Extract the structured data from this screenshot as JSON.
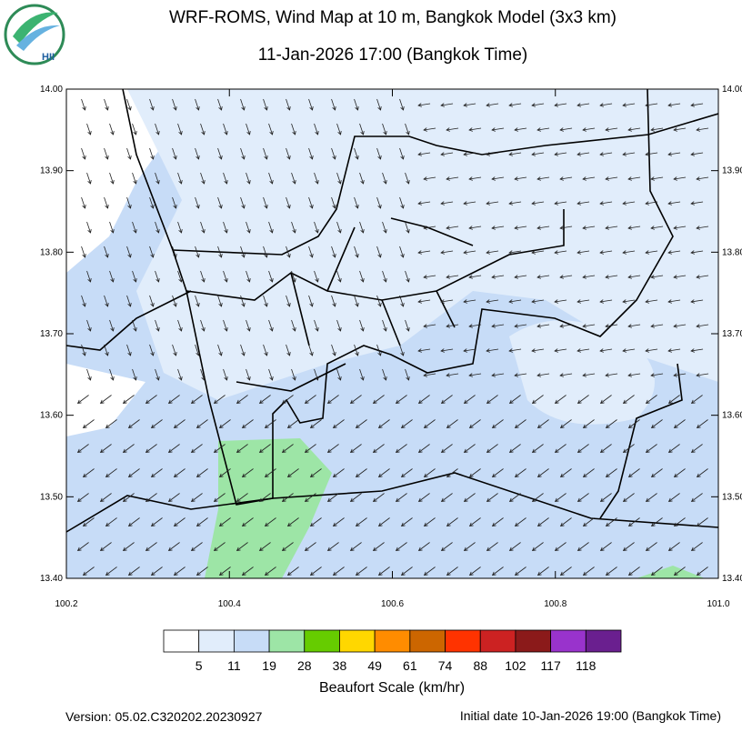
{
  "header": {
    "title": "WRF-ROMS, Wind Map at 10 m, Bangkok Model (3x3 km)",
    "subtitle": "11-Jan-2026 17:00 (Bangkok Time)",
    "logo": "HII"
  },
  "map": {
    "lat_ticks": [
      "14.00",
      "13.90",
      "13.80",
      "13.70",
      "13.60",
      "13.50",
      "13.40"
    ],
    "lon_ticks": [
      "100.2",
      "100.4",
      "100.6",
      "100.8",
      "101.0"
    ]
  },
  "colorbar": {
    "title": "Beaufort Scale (km/hr)",
    "colors": [
      "#ffffff",
      "#e1edfb",
      "#c7dcf7",
      "#9de5a6",
      "#66cc00",
      "#ffd700",
      "#ff8c00",
      "#cc6600",
      "#ff3300",
      "#cc2222",
      "#8b1a1a",
      "#9933cc",
      "#6a1f8f"
    ],
    "labels": [
      "5",
      "11",
      "19",
      "28",
      "38",
      "49",
      "61",
      "74",
      "88",
      "102",
      "117",
      "118"
    ]
  },
  "footer": {
    "version": "Version: 05.02.C320202.20230927",
    "initial_date": "Initial date 10-Jan-2026 19:00 (Bangkok Time)"
  }
}
